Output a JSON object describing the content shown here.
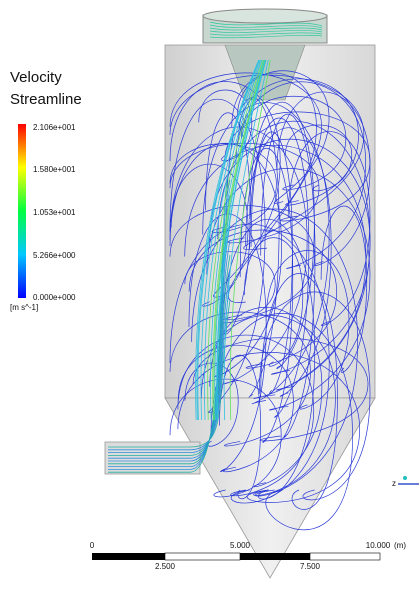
{
  "legend": {
    "title": [
      "Velocity",
      "Streamline"
    ],
    "labels": [
      "2.106e+001",
      "1.580e+001",
      "1.053e+001",
      "5.266e+000",
      "0.000e+000"
    ],
    "unit": "[m s^-1]"
  },
  "scale_bar": {
    "top_labels": [
      "0",
      "5.000",
      "10.000"
    ],
    "unit": "(m)",
    "bottom_labels": [
      "2.500",
      "7.500"
    ]
  },
  "axis_triad": {
    "label": "z"
  }
}
